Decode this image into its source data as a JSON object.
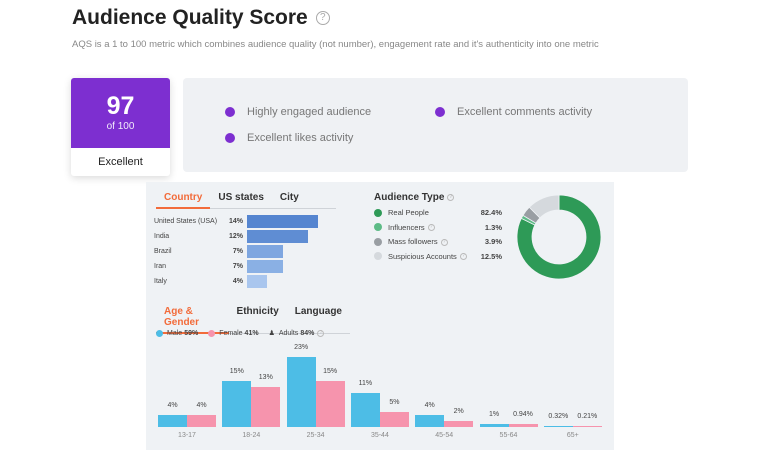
{
  "header": {
    "title": "Audience Quality Score",
    "help_icon": "question-circle-icon",
    "description": "AQS is a 1 to 100 metric which combines audience quality (not number), engagement rate and it's authenticity into one metric"
  },
  "score": {
    "value": "97",
    "of": "of 100",
    "label": "Excellent",
    "color": "#7d2fd0"
  },
  "features": [
    "Highly engaged audience",
    "Excellent comments activity",
    "Excellent likes activity"
  ],
  "location": {
    "tabs": [
      "Country",
      "US states",
      "City"
    ],
    "active": "Country",
    "rows": [
      {
        "name": "United States (USA)",
        "pct": "14%",
        "value": 14
      },
      {
        "name": "India",
        "pct": "12%",
        "value": 12
      },
      {
        "name": "Brazil",
        "pct": "7%",
        "value": 7
      },
      {
        "name": "Iran",
        "pct": "7%",
        "value": 7
      },
      {
        "name": "Italy",
        "pct": "4%",
        "value": 4
      }
    ]
  },
  "audience_type": {
    "title": "Audience Type",
    "items": [
      {
        "name": "Real People",
        "pct": "82.4%",
        "value": 82.4,
        "color": "#2e9a57"
      },
      {
        "name": "Influencers",
        "pct": "1.3%",
        "value": 1.3,
        "color": "#5dbb86"
      },
      {
        "name": "Mass followers",
        "pct": "3.9%",
        "value": 3.9,
        "color": "#999ea3"
      },
      {
        "name": "Suspicious Accounts",
        "pct": "12.5%",
        "value": 12.5,
        "color": "#d5d9dd"
      }
    ]
  },
  "demographics": {
    "tabs": [
      "Age & Gender",
      "Ethnicity",
      "Language"
    ],
    "active": "Age & Gender",
    "legend": {
      "male_label": "Male",
      "male_pct": "59%",
      "female_label": "Female",
      "female_pct": "41%",
      "adults_label": "Adults",
      "adults_pct": "84%"
    }
  },
  "chart_data": {
    "type": "bar",
    "categories": [
      "13-17",
      "18-24",
      "25-34",
      "35-44",
      "45-54",
      "55-64",
      "65+"
    ],
    "series": [
      {
        "name": "Male",
        "color": "#4dbde6",
        "values": [
          4,
          15,
          23,
          11,
          4,
          1,
          0.32
        ],
        "labels": [
          "4%",
          "15%",
          "23%",
          "11%",
          "4%",
          "1%",
          "0.32%"
        ]
      },
      {
        "name": "Female",
        "color": "#f694ad",
        "values": [
          4,
          13,
          15,
          5,
          2,
          0.94,
          0.21
        ],
        "labels": [
          "4%",
          "13%",
          "15%",
          "5%",
          "2%",
          "0.94%",
          "0.21%"
        ]
      }
    ]
  }
}
